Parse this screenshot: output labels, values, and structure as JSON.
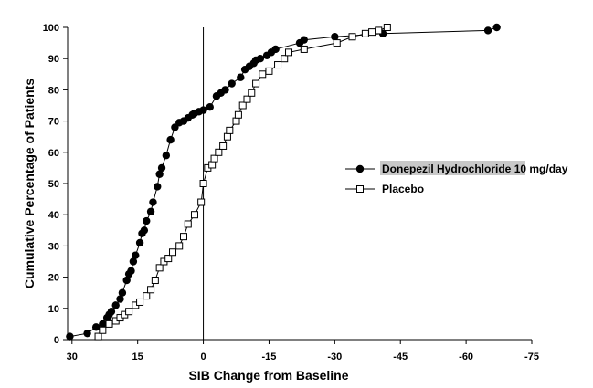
{
  "chart_data": {
    "type": "line",
    "title": "",
    "xlabel": "SIB Change from Baseline",
    "ylabel": "Cumulative Percentage of Patients",
    "xlim": [
      31,
      -75
    ],
    "ylim": [
      0,
      100
    ],
    "x_reversed": true,
    "x_ticks": [
      30,
      15,
      0,
      -15,
      -30,
      -45,
      -60,
      -75
    ],
    "x_tick_labels": [
      "30",
      "15",
      "0",
      "-15",
      "-30",
      "-45",
      "-60",
      "-75"
    ],
    "y_ticks": [
      0,
      10,
      20,
      30,
      40,
      50,
      60,
      70,
      80,
      90,
      100
    ],
    "y_tick_labels": [
      "0",
      "10",
      "20",
      "30",
      "40",
      "50",
      "60",
      "70",
      "80",
      "90",
      "100"
    ],
    "reference_line_x": 0,
    "legend_position": "right-middle",
    "series": [
      {
        "name": "Donepezil Hydrochloride 10 mg/day",
        "name_highlighted": "Donepezil Hydrochloride",
        "name_rest": " 10 mg/day",
        "marker": "filled-circle",
        "color": "#000000",
        "highlight_color": "#c8c8c8",
        "points": [
          [
            30.5,
            1
          ],
          [
            26.5,
            2
          ],
          [
            24.5,
            4
          ],
          [
            23,
            5
          ],
          [
            22,
            7
          ],
          [
            21.5,
            8
          ],
          [
            21,
            9
          ],
          [
            20,
            11
          ],
          [
            19,
            13
          ],
          [
            18.5,
            15
          ],
          [
            17.5,
            19
          ],
          [
            17,
            21
          ],
          [
            16.5,
            22
          ],
          [
            16,
            25
          ],
          [
            15.5,
            27
          ],
          [
            14.5,
            31
          ],
          [
            14,
            34
          ],
          [
            13.5,
            35
          ],
          [
            13,
            38
          ],
          [
            12,
            41
          ],
          [
            11.5,
            44
          ],
          [
            10.5,
            49
          ],
          [
            10,
            53
          ],
          [
            9.5,
            55
          ],
          [
            8.5,
            59
          ],
          [
            7.5,
            64
          ],
          [
            6.5,
            68
          ],
          [
            5.5,
            69.5
          ],
          [
            4.5,
            70
          ],
          [
            3.5,
            71
          ],
          [
            2.5,
            72
          ],
          [
            2,
            72.5
          ],
          [
            1,
            73
          ],
          [
            0,
            73.5
          ],
          [
            -1.5,
            74.5
          ],
          [
            -3,
            78
          ],
          [
            -4,
            79
          ],
          [
            -5,
            80
          ],
          [
            -6.5,
            82
          ],
          [
            -8.5,
            84
          ],
          [
            -9.5,
            86.5
          ],
          [
            -10.5,
            87.5
          ],
          [
            -11.5,
            88.5
          ],
          [
            -12,
            89.5
          ],
          [
            -13,
            90
          ],
          [
            -14.5,
            91
          ],
          [
            -15.5,
            92
          ],
          [
            -16.5,
            93
          ],
          [
            -22,
            95
          ],
          [
            -23,
            96
          ],
          [
            -30,
            97
          ],
          [
            -41,
            98
          ],
          [
            -65,
            99
          ],
          [
            -67,
            100
          ]
        ]
      },
      {
        "name": "Placebo",
        "marker": "open-square",
        "color": "#000000",
        "points": [
          [
            24,
            1
          ],
          [
            23,
            3
          ],
          [
            21.5,
            5
          ],
          [
            20,
            6
          ],
          [
            19,
            7
          ],
          [
            18,
            8
          ],
          [
            17,
            9
          ],
          [
            15.5,
            11
          ],
          [
            14.5,
            12
          ],
          [
            13,
            14
          ],
          [
            12,
            16
          ],
          [
            11,
            19
          ],
          [
            10,
            23
          ],
          [
            9,
            25
          ],
          [
            8,
            26
          ],
          [
            7,
            28
          ],
          [
            5.5,
            30
          ],
          [
            4.5,
            33
          ],
          [
            3.5,
            37
          ],
          [
            2,
            40
          ],
          [
            0.5,
            44
          ],
          [
            0,
            50
          ],
          [
            -1,
            55
          ],
          [
            -2,
            56
          ],
          [
            -2.5,
            58
          ],
          [
            -3.5,
            60
          ],
          [
            -4.5,
            62
          ],
          [
            -5.5,
            65
          ],
          [
            -6,
            67
          ],
          [
            -7.5,
            70
          ],
          [
            -8,
            72
          ],
          [
            -9,
            75
          ],
          [
            -10,
            77
          ],
          [
            -11,
            79
          ],
          [
            -12,
            82
          ],
          [
            -13.5,
            85
          ],
          [
            -15,
            86
          ],
          [
            -17,
            88
          ],
          [
            -18.5,
            90
          ],
          [
            -19.5,
            92
          ],
          [
            -23,
            93
          ],
          [
            -30.5,
            95
          ],
          [
            -34,
            97
          ],
          [
            -37,
            98
          ],
          [
            -38.5,
            98.5
          ],
          [
            -40,
            99
          ],
          [
            -42,
            100
          ]
        ]
      }
    ]
  }
}
